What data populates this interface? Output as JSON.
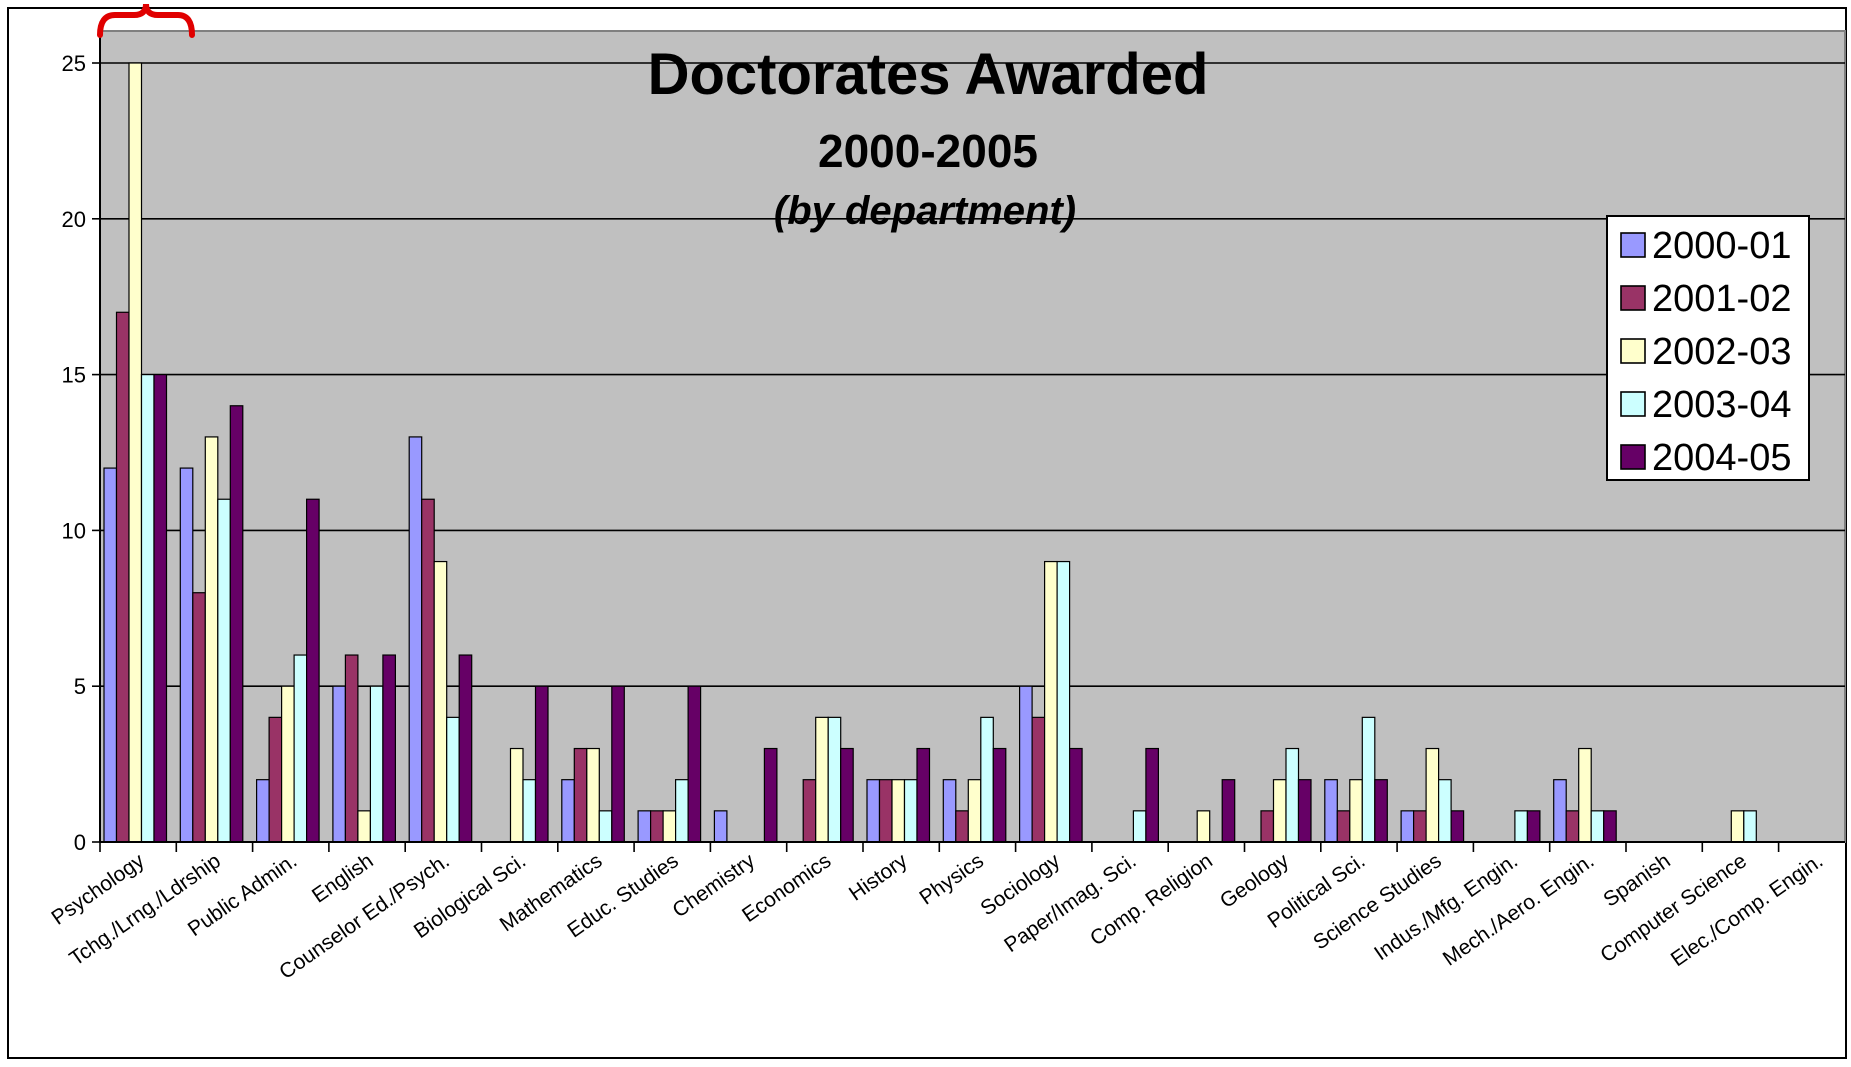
{
  "chart_data": {
    "type": "bar",
    "title": "Doctorates Awarded",
    "subtitle": "2000-2005",
    "subtitle2": "(by department)",
    "xlabel": "",
    "ylabel": "",
    "ylim": [
      0,
      25
    ],
    "yticks": [
      "0",
      "5",
      "10",
      "15",
      "20",
      "25"
    ],
    "grid": true,
    "legend_position": "right",
    "categories": [
      "Psychology",
      "Tchg./Lrng./Ldrship",
      "Public Admin.",
      "English",
      "Counselor Ed./Psych.",
      "Biological Sci.",
      "Mathematics",
      "Educ. Studies",
      "Chemistry",
      "Economics",
      "History",
      "Physics",
      "Sociology",
      "Paper/Imag. Sci.",
      "Comp. Religion",
      "Geology",
      "Political Sci.",
      "Science Studies",
      "Indus./Mfg. Engin.",
      "Mech./Aero. Engin.",
      "Spanish",
      "Computer Science",
      "Elec./Comp. Engin."
    ],
    "series": [
      {
        "name": "2000-01",
        "color": "#9999ff",
        "values": [
          12,
          12,
          2,
          5,
          13,
          0,
          2,
          1,
          1,
          0,
          2,
          2,
          5,
          0,
          0,
          0,
          2,
          1,
          0,
          2,
          0,
          0,
          0
        ]
      },
      {
        "name": "2001-02",
        "color": "#993366",
        "values": [
          17,
          8,
          4,
          6,
          11,
          0,
          3,
          1,
          0,
          2,
          2,
          1,
          4,
          0,
          0,
          1,
          1,
          1,
          0,
          1,
          0,
          0,
          0
        ]
      },
      {
        "name": "2002-03",
        "color": "#ffffcc",
        "values": [
          25,
          13,
          5,
          1,
          9,
          3,
          3,
          1,
          0,
          4,
          2,
          2,
          9,
          0,
          1,
          2,
          2,
          3,
          0,
          3,
          0,
          1,
          0
        ]
      },
      {
        "name": "2003-04",
        "color": "#ccffff",
        "values": [
          15,
          11,
          6,
          5,
          4,
          2,
          1,
          2,
          0,
          4,
          2,
          4,
          9,
          1,
          0,
          3,
          4,
          2,
          1,
          1,
          0,
          1,
          0
        ]
      },
      {
        "name": "2004-05",
        "color": "#660066",
        "values": [
          15,
          14,
          11,
          6,
          6,
          5,
          5,
          5,
          3,
          3,
          3,
          3,
          3,
          3,
          2,
          2,
          2,
          1,
          1,
          1,
          0,
          0,
          0
        ]
      }
    ]
  },
  "colors": {
    "plot_background": "#c0c0c0",
    "annotation_brace": "#e00000"
  }
}
